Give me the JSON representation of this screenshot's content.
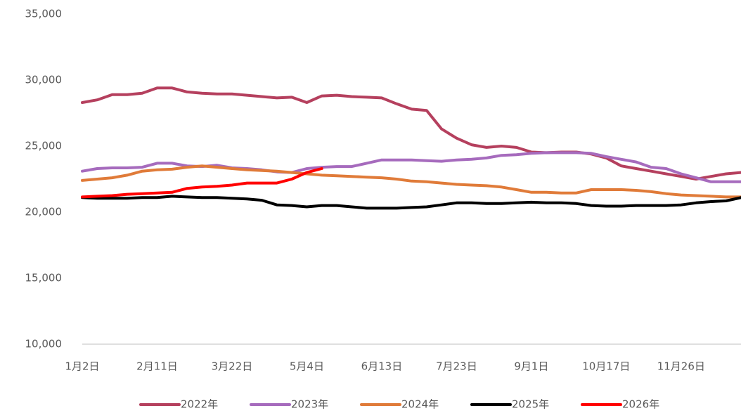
{
  "chart_data": {
    "type": "line",
    "categories": [
      "1月2日",
      null,
      null,
      null,
      null,
      "2月11日",
      null,
      null,
      null,
      null,
      "3月22日",
      null,
      null,
      null,
      null,
      "5月4日",
      null,
      null,
      null,
      null,
      "6月13日",
      null,
      null,
      null,
      null,
      "7月23日",
      null,
      null,
      null,
      null,
      "9月1日",
      null,
      null,
      null,
      null,
      "10月17日",
      null,
      null,
      null,
      null,
      "11月26日",
      null,
      null,
      null,
      null
    ],
    "series": [
      {
        "name": "2022年",
        "color": "#b5405e",
        "values": [
          28300,
          28500,
          28900,
          28900,
          29000,
          29400,
          29400,
          29100,
          29000,
          28950,
          28950,
          28850,
          28750,
          28650,
          28700,
          28300,
          28800,
          28850,
          28750,
          28700,
          28650,
          28200,
          27800,
          27700,
          26300,
          25600,
          25100,
          24900,
          25000,
          24900,
          24550,
          24500,
          24550,
          24550,
          24400,
          24100,
          23500,
          23300,
          23100,
          22900,
          22700,
          22500,
          22700,
          22900,
          23000
        ]
      },
      {
        "name": "2023年",
        "color": "#a66bbd",
        "values": [
          23100,
          23300,
          23350,
          23350,
          23400,
          23700,
          23700,
          23500,
          23450,
          23550,
          23350,
          23300,
          23200,
          23050,
          23000,
          23300,
          23400,
          23450,
          23450,
          23700,
          23950,
          23950,
          23950,
          23900,
          23850,
          23950,
          24000,
          24100,
          24300,
          24350,
          24450,
          24500,
          24500,
          24500,
          24450,
          24200,
          24000,
          23800,
          23400,
          23300,
          22900,
          22600,
          22300,
          22300,
          22300
        ]
      },
      {
        "name": "2024年",
        "color": "#e07b39",
        "values": [
          22400,
          22500,
          22600,
          22800,
          23100,
          23200,
          23250,
          23400,
          23500,
          23400,
          23300,
          23200,
          23150,
          23100,
          23000,
          22900,
          22800,
          22750,
          22700,
          22650,
          22600,
          22500,
          22350,
          22300,
          22200,
          22100,
          22050,
          22000,
          21900,
          21700,
          21500,
          21500,
          21450,
          21450,
          21700,
          21700,
          21700,
          21650,
          21550,
          21400,
          21300,
          21250,
          21200,
          21150,
          21150
        ]
      },
      {
        "name": "2025年",
        "color": "#000000",
        "values": [
          21100,
          21050,
          21050,
          21050,
          21100,
          21100,
          21200,
          21150,
          21100,
          21100,
          21050,
          21000,
          20900,
          20550,
          20500,
          20400,
          20500,
          20500,
          20400,
          20300,
          20300,
          20300,
          20350,
          20400,
          20550,
          20700,
          20700,
          20650,
          20650,
          20700,
          20750,
          20700,
          20700,
          20650,
          20500,
          20450,
          20450,
          20500,
          20500,
          20500,
          20550,
          20700,
          20800,
          20850,
          21100
        ]
      },
      {
        "name": "2026年",
        "color": "#ff0000",
        "values": [
          21150,
          21200,
          21250,
          21350,
          21400,
          21450,
          21500,
          21800,
          21900,
          21950,
          22050,
          22200,
          22200,
          22200,
          22500,
          23000,
          23300,
          null,
          null,
          null,
          null,
          null,
          null,
          null,
          null,
          null,
          null,
          null,
          null,
          null,
          null,
          null,
          null,
          null,
          null,
          null,
          null,
          null,
          null,
          null,
          null,
          null,
          null,
          null,
          null
        ]
      }
    ],
    "ylim": [
      10000,
      35000
    ],
    "yticks": [
      {
        "value": 10000,
        "label": "10,000"
      },
      {
        "value": 15000,
        "label": "15,000"
      },
      {
        "value": 20000,
        "label": "20,000"
      },
      {
        "value": 25000,
        "label": "25,000"
      },
      {
        "value": 30000,
        "label": "30,000"
      },
      {
        "value": 35000,
        "label": "35,000"
      }
    ],
    "grid": false,
    "legend": "bottom"
  }
}
